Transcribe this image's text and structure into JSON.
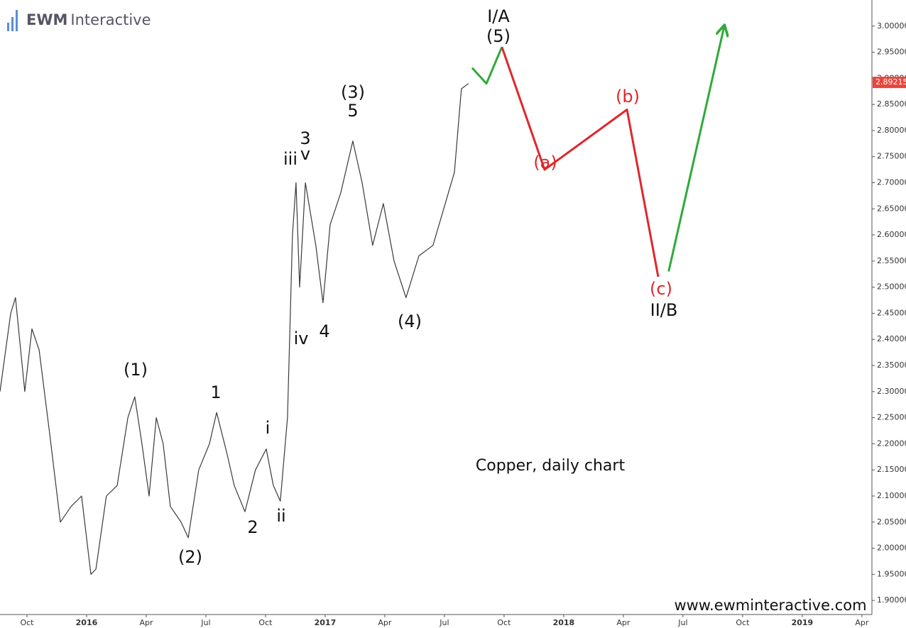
{
  "chart_data": {
    "type": "line",
    "title": "Copper, daily chart",
    "logo": {
      "bold": "EWM",
      "rest": "Interactive"
    },
    "url": "www.ewminteractive.com",
    "xlim": [
      2015.637,
      2019.292
    ],
    "ylim": [
      1.873,
      3.05
    ],
    "xticks": [
      {
        "value": 2015.75,
        "label": "Oct"
      },
      2016,
      {
        "value": 2016.25,
        "label": "Apr"
      },
      {
        "value": 2016.5,
        "label": "Jul"
      },
      {
        "value": 2016.75,
        "label": "Oct"
      },
      2017,
      {
        "value": 2017.25,
        "label": "Apr"
      },
      {
        "value": 2017.5,
        "label": "Jul"
      },
      {
        "value": 2017.75,
        "label": "Oct"
      },
      2018,
      {
        "value": 2018.25,
        "label": "Apr"
      },
      {
        "value": 2018.5,
        "label": "Jul"
      },
      {
        "value": 2018.75,
        "label": "Oct"
      },
      2019,
      {
        "value": 2019.25,
        "label": "Apr"
      }
    ],
    "yticks": [
      {
        "value": 1.9,
        "label": "1.90000"
      },
      {
        "value": 1.95,
        "label": "1.95000"
      },
      {
        "value": 2.0,
        "label": "2.00000"
      },
      {
        "value": 2.05,
        "label": "2.05000"
      },
      {
        "value": 2.1,
        "label": "2.10000"
      },
      {
        "value": 2.15,
        "label": "2.15000"
      },
      {
        "value": 2.2,
        "label": "2.20000"
      },
      {
        "value": 2.25,
        "label": "2.25000"
      },
      {
        "value": 2.3,
        "label": "2.30000"
      },
      {
        "value": 2.35,
        "label": "2.35000"
      },
      {
        "value": 2.4,
        "label": "2.40000"
      },
      {
        "value": 2.45,
        "label": "2.45000"
      },
      {
        "value": 2.5,
        "label": "2.50000"
      },
      {
        "value": 2.55,
        "label": "2.55000"
      },
      {
        "value": 2.6,
        "label": "2.60000"
      },
      {
        "value": 2.65,
        "label": "2.65000"
      },
      {
        "value": 2.7,
        "label": "2.70000"
      },
      {
        "value": 2.75,
        "label": "2.75000"
      },
      {
        "value": 2.8,
        "label": "2.80000"
      },
      {
        "value": 2.85,
        "label": "2.85000"
      },
      {
        "value": 2.9,
        "label": "2.90000"
      },
      {
        "value": 2.95,
        "label": "2.95000"
      },
      {
        "value": 3.0,
        "label": "3.00000"
      }
    ],
    "last_price": 2.89215,
    "last_price_color": "#e8463c",
    "series": [
      {
        "color": "#3a3a3a",
        "width": 1.2,
        "x": [
          2015.637,
          2015.682,
          2015.702,
          2015.741,
          2015.771,
          2015.801,
          2015.845,
          2015.89,
          2015.935,
          2015.979,
          2016.018,
          2016.039,
          2016.083,
          2016.128,
          2016.173,
          2016.202,
          2016.232,
          2016.262,
          2016.292,
          2016.321,
          2016.351,
          2016.396,
          2016.426,
          2016.47,
          2016.515,
          2016.545,
          2016.589,
          2016.619,
          2016.664,
          2016.708,
          2016.753,
          2016.783,
          2016.812,
          2016.842,
          2016.863,
          2016.878,
          2016.893,
          2016.917,
          2016.961,
          2016.991,
          2017.021,
          2017.065,
          2017.116,
          2017.155,
          2017.199,
          2017.244,
          2017.289,
          2017.339,
          2017.393,
          2017.452,
          2017.497,
          2017.542,
          2017.571,
          2017.601
        ],
        "values": [
          2.3,
          2.45,
          2.48,
          2.3,
          2.42,
          2.38,
          2.22,
          2.05,
          2.08,
          2.1,
          1.95,
          1.96,
          2.1,
          2.12,
          2.25,
          2.29,
          2.2,
          2.1,
          2.25,
          2.2,
          2.08,
          2.05,
          2.02,
          2.15,
          2.2,
          2.26,
          2.18,
          2.12,
          2.07,
          2.15,
          2.19,
          2.12,
          2.09,
          2.25,
          2.6,
          2.7,
          2.5,
          2.7,
          2.58,
          2.47,
          2.62,
          2.68,
          2.78,
          2.7,
          2.58,
          2.66,
          2.55,
          2.48,
          2.56,
          2.58,
          2.65,
          2.72,
          2.88,
          2.89
        ]
      },
      {
        "color": "#2eaa3a",
        "width": 3,
        "x": [
          2017.616,
          2017.676,
          2017.741
        ],
        "values": [
          2.92,
          2.89,
          2.96
        ]
      },
      {
        "color": "#e0262b",
        "width": 3,
        "x": [
          2017.741,
          2017.92,
          2018.265,
          2018.396
        ],
        "values": [
          2.96,
          2.725,
          2.84,
          2.52
        ]
      },
      {
        "color": "#2eaa3a",
        "width": 3,
        "arrow": true,
        "x": [
          2018.44,
          2018.673
        ],
        "values": [
          2.53,
          3.0
        ]
      }
    ],
    "annotations": [
      "(1)",
      "(2)",
      "1",
      "2",
      "i",
      "ii",
      "iii",
      "iv",
      "3",
      "v",
      "4",
      "(3)",
      "5",
      "(4)",
      "I/A",
      "(5)",
      "(a)",
      "(b)",
      "(c)",
      "II/B"
    ]
  }
}
